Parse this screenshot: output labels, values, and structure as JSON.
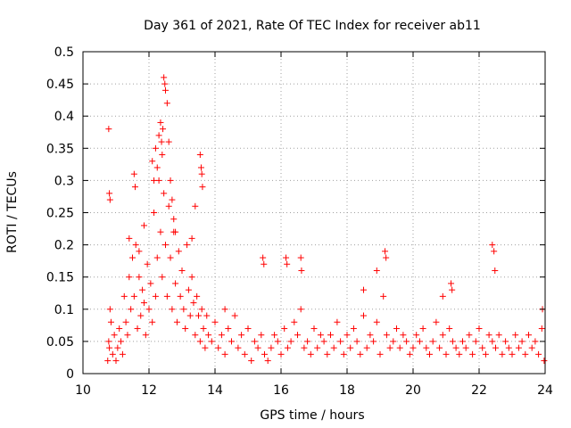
{
  "chart_data": {
    "type": "scatter",
    "title": "Day 361 of 2021, Rate Of TEC Index for receiver ab11",
    "xlabel": "GPS time / hours",
    "ylabel": "ROTI / TECUs",
    "xlim": [
      10,
      24
    ],
    "ylim": [
      0,
      0.5
    ],
    "xticks": [
      "10",
      "12",
      "14",
      "16",
      "18",
      "20",
      "22",
      "24"
    ],
    "yticks": [
      "0",
      "0.05",
      "0.1",
      "0.15",
      "0.2",
      "0.25",
      "0.3",
      "0.35",
      "0.4",
      "0.45",
      "0.5"
    ],
    "grid": true,
    "marker": "plus",
    "color": "#ff0000",
    "series": [
      {
        "x": [
          10.75,
          10.78,
          10.8,
          10.82,
          10.85,
          10.9,
          10.95,
          11.0,
          11.05,
          11.1,
          11.15,
          11.2,
          11.25,
          11.3,
          11.35,
          11.4,
          11.45,
          11.5,
          11.55,
          11.6,
          11.65,
          11.7,
          11.75,
          11.8,
          11.85,
          11.9,
          11.95,
          12.0,
          12.05,
          12.1,
          12.15,
          12.2,
          12.25,
          12.3,
          12.35,
          12.4,
          12.45,
          12.5,
          12.55,
          12.6,
          12.65,
          12.7,
          12.75,
          12.8,
          12.85,
          12.9,
          12.95,
          13.0,
          13.05,
          13.1,
          13.15,
          13.2,
          13.25,
          13.3,
          13.35,
          13.4,
          13.45,
          13.5,
          13.55,
          13.6,
          13.65,
          13.7,
          13.75,
          13.8,
          13.9,
          14.0,
          14.1,
          14.2,
          14.3,
          14.4,
          14.5,
          14.6,
          14.7,
          14.8,
          14.9,
          15.0,
          15.1,
          15.2,
          15.3,
          15.4,
          15.5,
          15.6,
          15.7,
          15.8,
          15.9,
          16.0,
          16.1,
          16.2,
          16.3,
          16.4,
          16.5,
          16.6,
          16.7,
          16.8,
          16.9,
          17.0,
          17.1,
          17.2,
          17.3,
          17.4,
          17.5,
          17.6,
          17.7,
          17.8,
          17.9,
          18.0,
          18.1,
          18.2,
          18.3,
          18.4,
          18.5,
          18.6,
          18.7,
          18.8,
          18.9,
          19.0,
          19.1,
          19.2,
          19.3,
          19.4,
          19.5,
          19.6,
          19.7,
          19.8,
          19.9,
          20.0,
          20.1,
          20.2,
          20.3,
          20.4,
          20.5,
          20.6,
          20.7,
          20.8,
          20.9,
          21.0,
          21.1,
          21.2,
          21.3,
          21.4,
          21.5,
          21.6,
          21.7,
          21.8,
          21.9,
          22.0,
          22.1,
          22.2,
          22.3,
          22.4,
          22.5,
          22.6,
          22.7,
          22.8,
          22.9,
          23.0,
          23.1,
          23.2,
          23.3,
          23.4,
          23.5,
          23.6,
          23.7,
          23.8,
          23.9,
          23.97,
          10.78,
          10.8,
          10.82,
          11.55,
          11.58,
          12.1,
          12.15,
          12.2,
          12.25,
          12.3,
          12.35,
          12.38,
          12.4,
          12.42,
          12.45,
          12.48,
          12.5,
          12.55,
          12.6,
          12.65,
          12.7,
          12.75,
          12.8,
          13.55,
          13.58,
          13.6,
          13.62,
          15.45,
          15.48,
          16.15,
          16.18,
          16.6,
          16.62,
          19.15,
          19.18,
          22.4,
          22.45,
          22.48,
          21.15,
          21.18,
          20.9,
          18.9,
          18.5,
          11.4,
          11.7,
          11.85,
          13.3,
          13.4,
          14.3,
          23.92
        ],
        "y": [
          0.02,
          0.05,
          0.04,
          0.1,
          0.08,
          0.03,
          0.06,
          0.02,
          0.04,
          0.07,
          0.05,
          0.03,
          0.12,
          0.08,
          0.06,
          0.15,
          0.1,
          0.18,
          0.12,
          0.2,
          0.07,
          0.15,
          0.09,
          0.13,
          0.11,
          0.06,
          0.17,
          0.1,
          0.14,
          0.08,
          0.25,
          0.12,
          0.18,
          0.3,
          0.22,
          0.15,
          0.28,
          0.2,
          0.12,
          0.26,
          0.18,
          0.1,
          0.22,
          0.14,
          0.08,
          0.19,
          0.12,
          0.16,
          0.1,
          0.07,
          0.2,
          0.13,
          0.09,
          0.15,
          0.11,
          0.06,
          0.12,
          0.09,
          0.05,
          0.1,
          0.07,
          0.04,
          0.09,
          0.06,
          0.05,
          0.08,
          0.04,
          0.06,
          0.03,
          0.07,
          0.05,
          0.09,
          0.04,
          0.06,
          0.03,
          0.07,
          0.02,
          0.05,
          0.04,
          0.06,
          0.03,
          0.02,
          0.04,
          0.06,
          0.05,
          0.03,
          0.07,
          0.04,
          0.05,
          0.08,
          0.06,
          0.1,
          0.04,
          0.05,
          0.03,
          0.07,
          0.04,
          0.06,
          0.05,
          0.03,
          0.06,
          0.04,
          0.08,
          0.05,
          0.03,
          0.06,
          0.04,
          0.07,
          0.05,
          0.03,
          0.09,
          0.04,
          0.06,
          0.05,
          0.08,
          0.03,
          0.12,
          0.06,
          0.04,
          0.05,
          0.07,
          0.04,
          0.06,
          0.05,
          0.03,
          0.04,
          0.06,
          0.05,
          0.07,
          0.04,
          0.03,
          0.05,
          0.08,
          0.04,
          0.06,
          0.03,
          0.07,
          0.05,
          0.04,
          0.03,
          0.05,
          0.04,
          0.06,
          0.03,
          0.05,
          0.07,
          0.04,
          0.03,
          0.06,
          0.05,
          0.04,
          0.06,
          0.03,
          0.05,
          0.04,
          0.03,
          0.06,
          0.04,
          0.05,
          0.03,
          0.06,
          0.04,
          0.05,
          0.03,
          0.07,
          0.02,
          0.38,
          0.28,
          0.27,
          0.31,
          0.29,
          0.33,
          0.3,
          0.35,
          0.32,
          0.37,
          0.39,
          0.36,
          0.34,
          0.38,
          0.46,
          0.45,
          0.44,
          0.42,
          0.36,
          0.3,
          0.27,
          0.24,
          0.22,
          0.34,
          0.32,
          0.31,
          0.29,
          0.18,
          0.17,
          0.18,
          0.17,
          0.18,
          0.16,
          0.19,
          0.18,
          0.2,
          0.19,
          0.16,
          0.14,
          0.13,
          0.12,
          0.16,
          0.13,
          0.21,
          0.19,
          0.23,
          0.21,
          0.26,
          0.1,
          0.1
        ]
      }
    ]
  }
}
